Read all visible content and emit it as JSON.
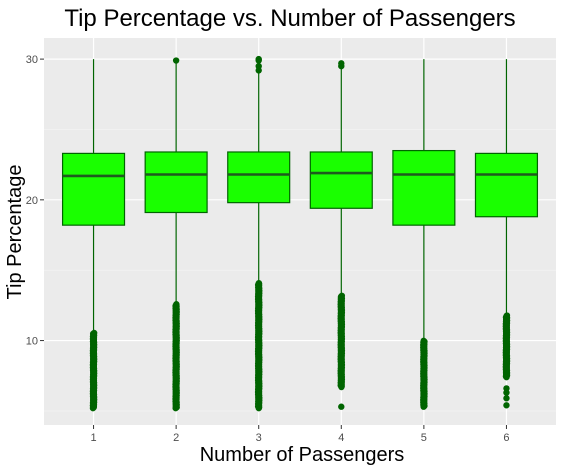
{
  "chart_data": {
    "type": "boxplot",
    "title": "Tip Percentage vs. Number of Passengers",
    "xlabel": "Number of Passengers",
    "ylabel": "Tip Percentage",
    "categories": [
      "1",
      "2",
      "3",
      "4",
      "5",
      "6"
    ],
    "ylim": [
      4,
      31.5
    ],
    "yticks": [
      10,
      20,
      30
    ],
    "grid": true,
    "legend": "none",
    "colors": {
      "panel_bg": "#ebebeb",
      "grid_major": "#ffffff",
      "grid_minor": "#f5f5f5",
      "box_fill": "#1aff00",
      "box_line": "#006400",
      "outlier": "#006400"
    },
    "boxes": [
      {
        "category": "1",
        "whisker_low": 10.7,
        "q1": 18.2,
        "median": 21.7,
        "q3": 23.3,
        "whisker_high": 30.0,
        "outliers_high": [],
        "outliers_low_range": [
          5.2,
          10.6
        ],
        "outliers_low_dense": true
      },
      {
        "category": "2",
        "whisker_low": 12.7,
        "q1": 19.1,
        "median": 21.8,
        "q3": 23.4,
        "whisker_high": 29.8,
        "outliers_high": [
          29.9
        ],
        "outliers_low_range": [
          5.2,
          12.6
        ],
        "outliers_low_dense": true
      },
      {
        "category": "3",
        "whisker_low": 14.2,
        "q1": 19.8,
        "median": 21.8,
        "q3": 23.4,
        "whisker_high": 29.0,
        "outliers_high": [
          29.2,
          29.5,
          29.9,
          30.0
        ],
        "outliers_low_range": [
          5.2,
          14.1
        ],
        "outliers_low_dense": true
      },
      {
        "category": "4",
        "whisker_low": 13.3,
        "q1": 19.4,
        "median": 21.9,
        "q3": 23.4,
        "whisker_high": 29.4,
        "outliers_high": [
          29.5,
          29.7
        ],
        "outliers_low_range": [
          6.7,
          13.2
        ],
        "outliers_low_dense": true,
        "extra_low_points": [
          5.3
        ]
      },
      {
        "category": "5",
        "whisker_low": 10.1,
        "q1": 18.2,
        "median": 21.8,
        "q3": 23.5,
        "whisker_high": 30.0,
        "outliers_high": [],
        "outliers_low_range": [
          5.3,
          10.0
        ],
        "outliers_low_dense": true
      },
      {
        "category": "6",
        "whisker_low": 11.9,
        "q1": 18.8,
        "median": 21.8,
        "q3": 23.3,
        "whisker_high": 30.0,
        "outliers_high": [],
        "outliers_low_range": [
          7.4,
          11.8
        ],
        "outliers_low_dense": true,
        "extra_low_points": [
          5.4,
          5.9,
          6.3,
          6.6
        ]
      }
    ]
  }
}
